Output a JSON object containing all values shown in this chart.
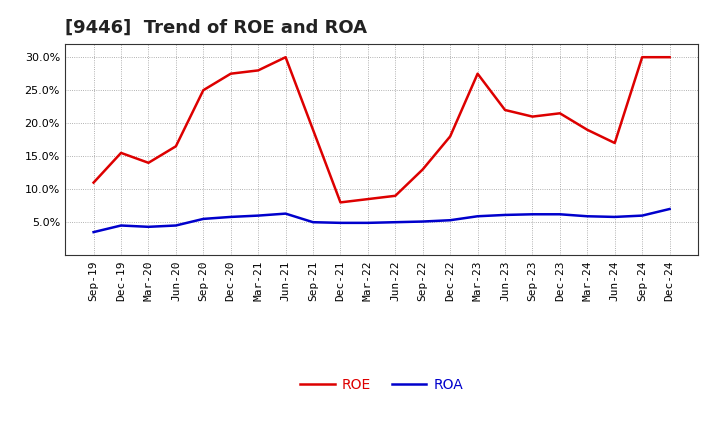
{
  "title": "[9446]  Trend of ROE and ROA",
  "x_labels": [
    "Sep-19",
    "Dec-19",
    "Mar-20",
    "Jun-20",
    "Sep-20",
    "Dec-20",
    "Mar-21",
    "Jun-21",
    "Sep-21",
    "Dec-21",
    "Mar-22",
    "Jun-22",
    "Sep-22",
    "Dec-22",
    "Mar-23",
    "Jun-23",
    "Sep-23",
    "Dec-23",
    "Mar-24",
    "Jun-24",
    "Sep-24",
    "Dec-24"
  ],
  "roe": [
    11.0,
    15.5,
    14.0,
    16.5,
    25.0,
    27.5,
    28.0,
    30.0,
    19.0,
    8.0,
    8.5,
    9.0,
    13.0,
    18.0,
    27.5,
    22.0,
    21.0,
    21.5,
    19.0,
    17.0,
    30.0,
    30.0
  ],
  "roa": [
    3.5,
    4.5,
    4.3,
    4.5,
    5.5,
    5.8,
    6.0,
    6.3,
    5.0,
    4.9,
    4.9,
    5.0,
    5.1,
    5.3,
    5.9,
    6.1,
    6.2,
    6.2,
    5.9,
    5.8,
    6.0,
    7.0
  ],
  "roe_color": "#dd0000",
  "roa_color": "#0000cc",
  "background_color": "#ffffff",
  "grid_color": "#999999",
  "ylim": [
    0,
    32
  ],
  "yticks": [
    5.0,
    10.0,
    15.0,
    20.0,
    25.0,
    30.0
  ],
  "legend_roe": "ROE",
  "legend_roa": "ROA",
  "title_fontsize": 13,
  "tick_fontsize": 8,
  "line_width": 1.8
}
